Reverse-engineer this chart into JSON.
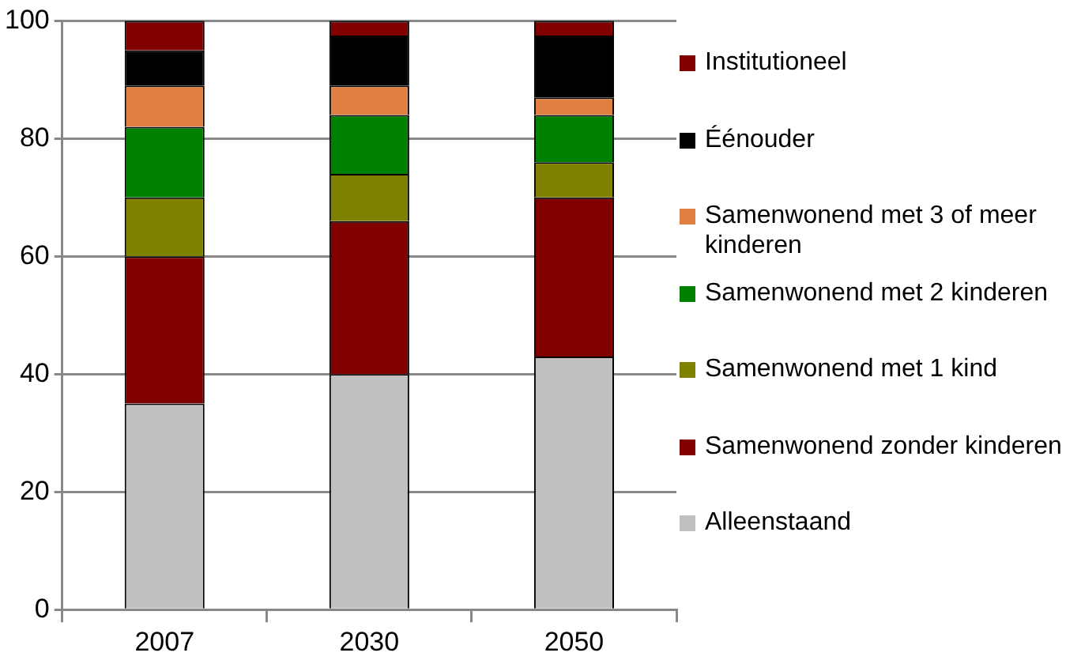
{
  "chart_data": {
    "type": "bar",
    "stacked": true,
    "categories": [
      "2007",
      "2030",
      "2050"
    ],
    "series": [
      {
        "name": "Alleenstaand",
        "color": "#c0c0c0",
        "values": [
          35,
          40,
          43
        ]
      },
      {
        "name": "Samenwonend zonder kinderen",
        "color": "#800000",
        "values": [
          25,
          26,
          27
        ]
      },
      {
        "name": "Samenwonend met 1 kind",
        "color": "#808000",
        "values": [
          10,
          8,
          6
        ]
      },
      {
        "name": "Samenwonend met 2 kinderen",
        "color": "#008000",
        "values": [
          12,
          10,
          8
        ]
      },
      {
        "name": "Samenwonend met 3 of meer kinderen",
        "color": "#e08040",
        "values": [
          7,
          5,
          3
        ]
      },
      {
        "name": "Éénouder",
        "color": "#000000",
        "values": [
          6,
          8.5,
          10.5
        ]
      },
      {
        "name": "Institutioneel",
        "color": "#800000",
        "values": [
          5,
          2.5,
          2.5
        ]
      }
    ],
    "ylim": [
      0,
      100
    ],
    "yticks": [
      0,
      20,
      40,
      60,
      80,
      100
    ],
    "grid": "y",
    "legend": "right"
  }
}
